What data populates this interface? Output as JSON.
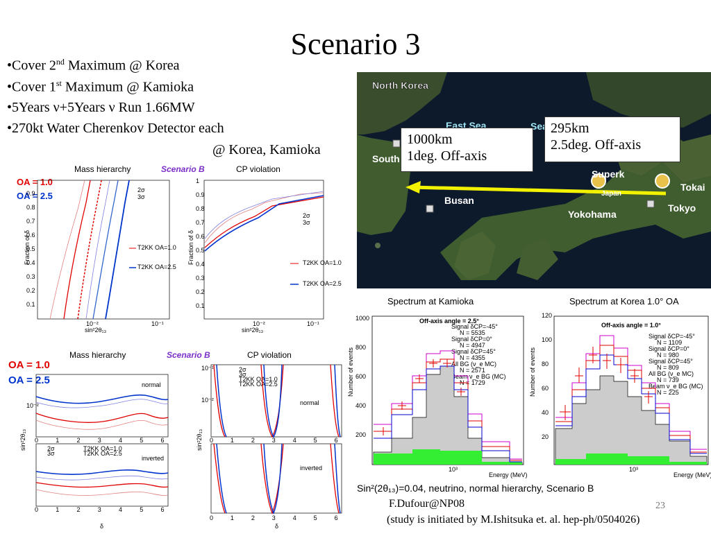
{
  "slide": {
    "title": "Scenario 3",
    "page_number": "23",
    "credit": "F.Dufour@NP08",
    "note": "(study is initiated by M.Ishitsuka et. al. hep-ph/0504026)"
  },
  "bullets": {
    "b1": {
      "pre": "•Cover 2",
      "sup": "nd",
      "post": " Maximum @ Korea"
    },
    "b2": {
      "pre": "•Cover 1",
      "sup": "st",
      "post": "  Maximum @ Kamioka"
    },
    "b3": "•5Years ν+5Years ν Run 1.66MW",
    "b4": "•270kt Water Cherenkov Detector each",
    "b5": "@ Korea, Kamioka"
  },
  "map": {
    "labels": {
      "north_korea": "North Korea",
      "east_sea": "East Sea",
      "sea": "Sea",
      "south": "South",
      "busan": "Busan",
      "yokohama": "Yokohama",
      "superk": "Superk",
      "tokai": "Tokai",
      "tokyo": "Tokyo",
      "japan": "Japan"
    },
    "korea_box": {
      "line1": "1000km",
      "line2": "1deg. Off-axis"
    },
    "kamioka_box": {
      "line1": "295km",
      "line2": "2.5deg. Off-axis"
    },
    "colors": {
      "sea": "#0d1a2c",
      "land": "#3c5a2c",
      "arrow": "#f2f200"
    }
  },
  "top_panel": {
    "legend": {
      "oa1": "OA = 1.0",
      "oa2": "OA = 2.5"
    },
    "mass_title": "Mass hierarchy",
    "scenario": "Scenario B",
    "cp_title": "CP violation",
    "ylabel": "Fraction of δ",
    "xlabel": "sin²2θ₁₃",
    "left": {
      "yticks": [
        "0.9",
        "0.8",
        "0.7",
        "0.6",
        "0.5",
        "0.4",
        "0.3",
        "0.2",
        "0.1"
      ],
      "xticks": [
        "10⁻²",
        "10⁻¹"
      ],
      "legend": [
        "2σ",
        "3σ",
        "T2KK OA=1.0",
        "T2KK OA=2.5"
      ]
    },
    "right": {
      "yticks": [
        "1",
        "0.9",
        "0.8",
        "0.7",
        "0.6",
        "0.5",
        "0.4",
        "0.3",
        "0.2",
        "0.1"
      ],
      "xticks": [
        "10⁻²",
        "10⁻¹"
      ],
      "legend": [
        "2σ",
        "3σ",
        "T2KK OA=1.0",
        "T2KK OA=2.5"
      ]
    }
  },
  "bottom_panel": {
    "legend": {
      "oa1": "OA = 1.0",
      "oa2": "OA = 2.5"
    },
    "mass_title": "Mass hierarchy",
    "scenario": "Scenario B",
    "cp_title": "CP violation",
    "ylabel": "sin²2θ₁₃",
    "xlabel": "δ",
    "xticks": [
      "0",
      "1",
      "2",
      "3",
      "4",
      "5",
      "6"
    ],
    "normal": "normal",
    "inverted": "inverted",
    "legend_items": [
      "2σ",
      "3σ",
      "T2KK OA=1.0",
      "T2KK OA=2.5"
    ],
    "yticks": [
      "10⁻¹",
      "10⁻²"
    ]
  },
  "spectra": {
    "kamioka": {
      "title": "Spectrum at Kamioka",
      "offaxis": "Off-axis angle = 2.5°",
      "yticks": [
        "1000",
        "800",
        "600",
        "400",
        "200"
      ],
      "xtick": "10³",
      "xlabel": "Energy (MeV)",
      "ylabel": "Number of events",
      "signals": [
        {
          "label": "Signal δCP=-45°",
          "n": "N = 5535",
          "color": "#cc00cc"
        },
        {
          "label": "Signal δCP=0°",
          "n": "N = 4947",
          "color": "#e00000"
        },
        {
          "label": "Signal δCP=45°",
          "n": "N = 4355",
          "color": "#0000cc"
        },
        {
          "label": "All BG (ν_e MC)",
          "n": "N = 2571",
          "color": "#000000"
        },
        {
          "label": "Beam ν_e BG (MC)",
          "n": "N = 1729",
          "color": "#22cc22"
        }
      ]
    },
    "korea": {
      "title": "Spectrum at Korea 1.0° OA",
      "offaxis": "Off-axis angle = 1.0°",
      "yticks": [
        "120",
        "100",
        "80",
        "60",
        "40",
        "20"
      ],
      "xtick": "10³",
      "xlabel": "Energy (MeV)",
      "ylabel": "Number of events",
      "signals": [
        {
          "label": "Signal δCP=-45°",
          "n": "N = 1109",
          "color": "#cc00cc"
        },
        {
          "label": "Signal δCP=0°",
          "n": "N = 980",
          "color": "#e00000"
        },
        {
          "label": "Signal δCP=45°",
          "n": "N = 809",
          "color": "#0000cc"
        },
        {
          "label": "All BG (ν_e MC)",
          "n": "N = 739",
          "color": "#000000"
        },
        {
          "label": "Beam ν_e BG (MC)",
          "n": "N = 225",
          "color": "#22cc22"
        }
      ]
    },
    "caption": "Sin²(2θ₁₃)=0.04, neutrino, normal hierarchy, Scenario B"
  }
}
